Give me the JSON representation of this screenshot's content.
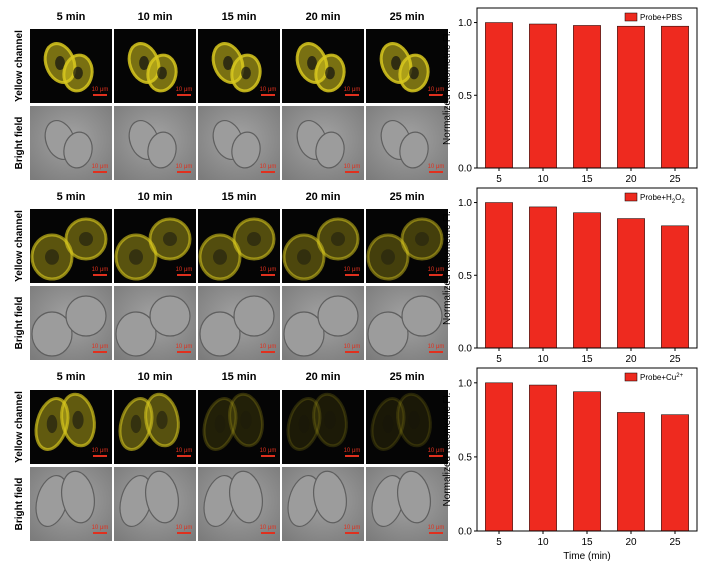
{
  "colors": {
    "bar": "#ee2a1f",
    "yellow_signal": "#d8c81e",
    "micro_bg": "#050505",
    "brightfield": "#8f8f8f"
  },
  "image_rows": {
    "time_labels": [
      "5 min",
      "10 min",
      "15 min",
      "20 min",
      "25 min"
    ],
    "row_labels": [
      "Yellow channel",
      "Bright field"
    ],
    "scale_label": "10 μm",
    "yellow_intensity": [
      [
        1.0,
        1.0,
        1.0,
        1.0,
        1.0
      ],
      [
        0.75,
        0.72,
        0.68,
        0.62,
        0.55
      ],
      [
        0.8,
        0.7,
        0.25,
        0.2,
        0.18
      ]
    ]
  },
  "chart_data": [
    {
      "type": "bar",
      "categories": [
        "5",
        "10",
        "15",
        "20",
        "25"
      ],
      "values": [
        1.0,
        0.99,
        0.98,
        0.975,
        0.975
      ],
      "legend": "Probe+PBS",
      "ylabel": "Normalized ratiometric Fl.",
      "xlabel": "",
      "ylim": [
        0,
        1.1
      ],
      "yticks": [
        0.0,
        0.5,
        1.0
      ],
      "legend_position": "top-right"
    },
    {
      "type": "bar",
      "categories": [
        "5",
        "10",
        "15",
        "20",
        "25"
      ],
      "values": [
        1.0,
        0.97,
        0.93,
        0.89,
        0.84
      ],
      "legend": "Probe+H2O2",
      "ylabel": "Normalized ratiometric Fl.",
      "xlabel": "",
      "ylim": [
        0,
        1.1
      ],
      "yticks": [
        0.0,
        0.5,
        1.0
      ],
      "legend_position": "top-right"
    },
    {
      "type": "bar",
      "categories": [
        "5",
        "10",
        "15",
        "20",
        "25"
      ],
      "values": [
        1.0,
        0.985,
        0.94,
        0.8,
        0.785
      ],
      "legend": "Probe+Cu2+",
      "ylabel": "Normalized ratiometric Fl.",
      "xlabel": "Time (min)",
      "ylim": [
        0,
        1.1
      ],
      "yticks": [
        0.0,
        0.5,
        1.0
      ],
      "legend_position": "top-right"
    }
  ]
}
